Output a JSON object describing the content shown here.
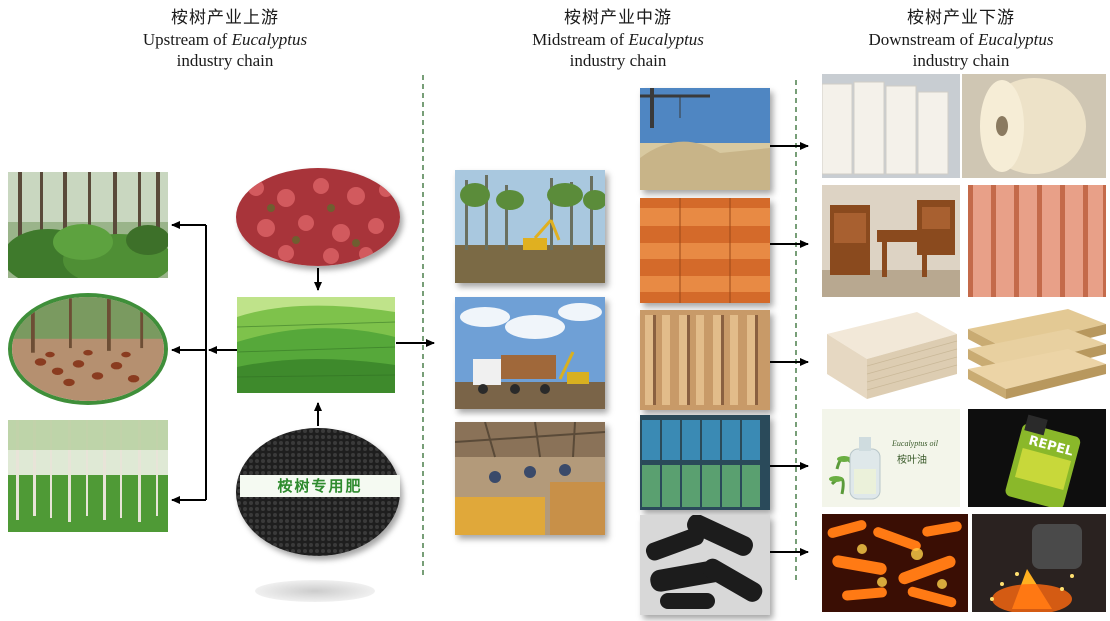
{
  "headers": {
    "upstream": {
      "zh": "桉树产业上游",
      "en_pre": "Upstream of ",
      "en_italic": "Eucalyptus",
      "en_post": "industry chain"
    },
    "midstream": {
      "zh": "桉树产业中游",
      "en_pre": "Midstream of ",
      "en_italic": "Eucalyptus",
      "en_post": "industry chain"
    },
    "downstream": {
      "zh": "桉树产业下游",
      "en_pre": "Downstream of ",
      "en_italic": "Eucalyptus",
      "en_post": "industry chain"
    }
  },
  "upstream": {
    "fertilizer_label": "桉树专用肥"
  },
  "downstream": {
    "oil_bottle_label": "Eucalyptus oil",
    "oil_bottle_zh": "桉叶油",
    "repel_brand": "REPEL"
  }
}
